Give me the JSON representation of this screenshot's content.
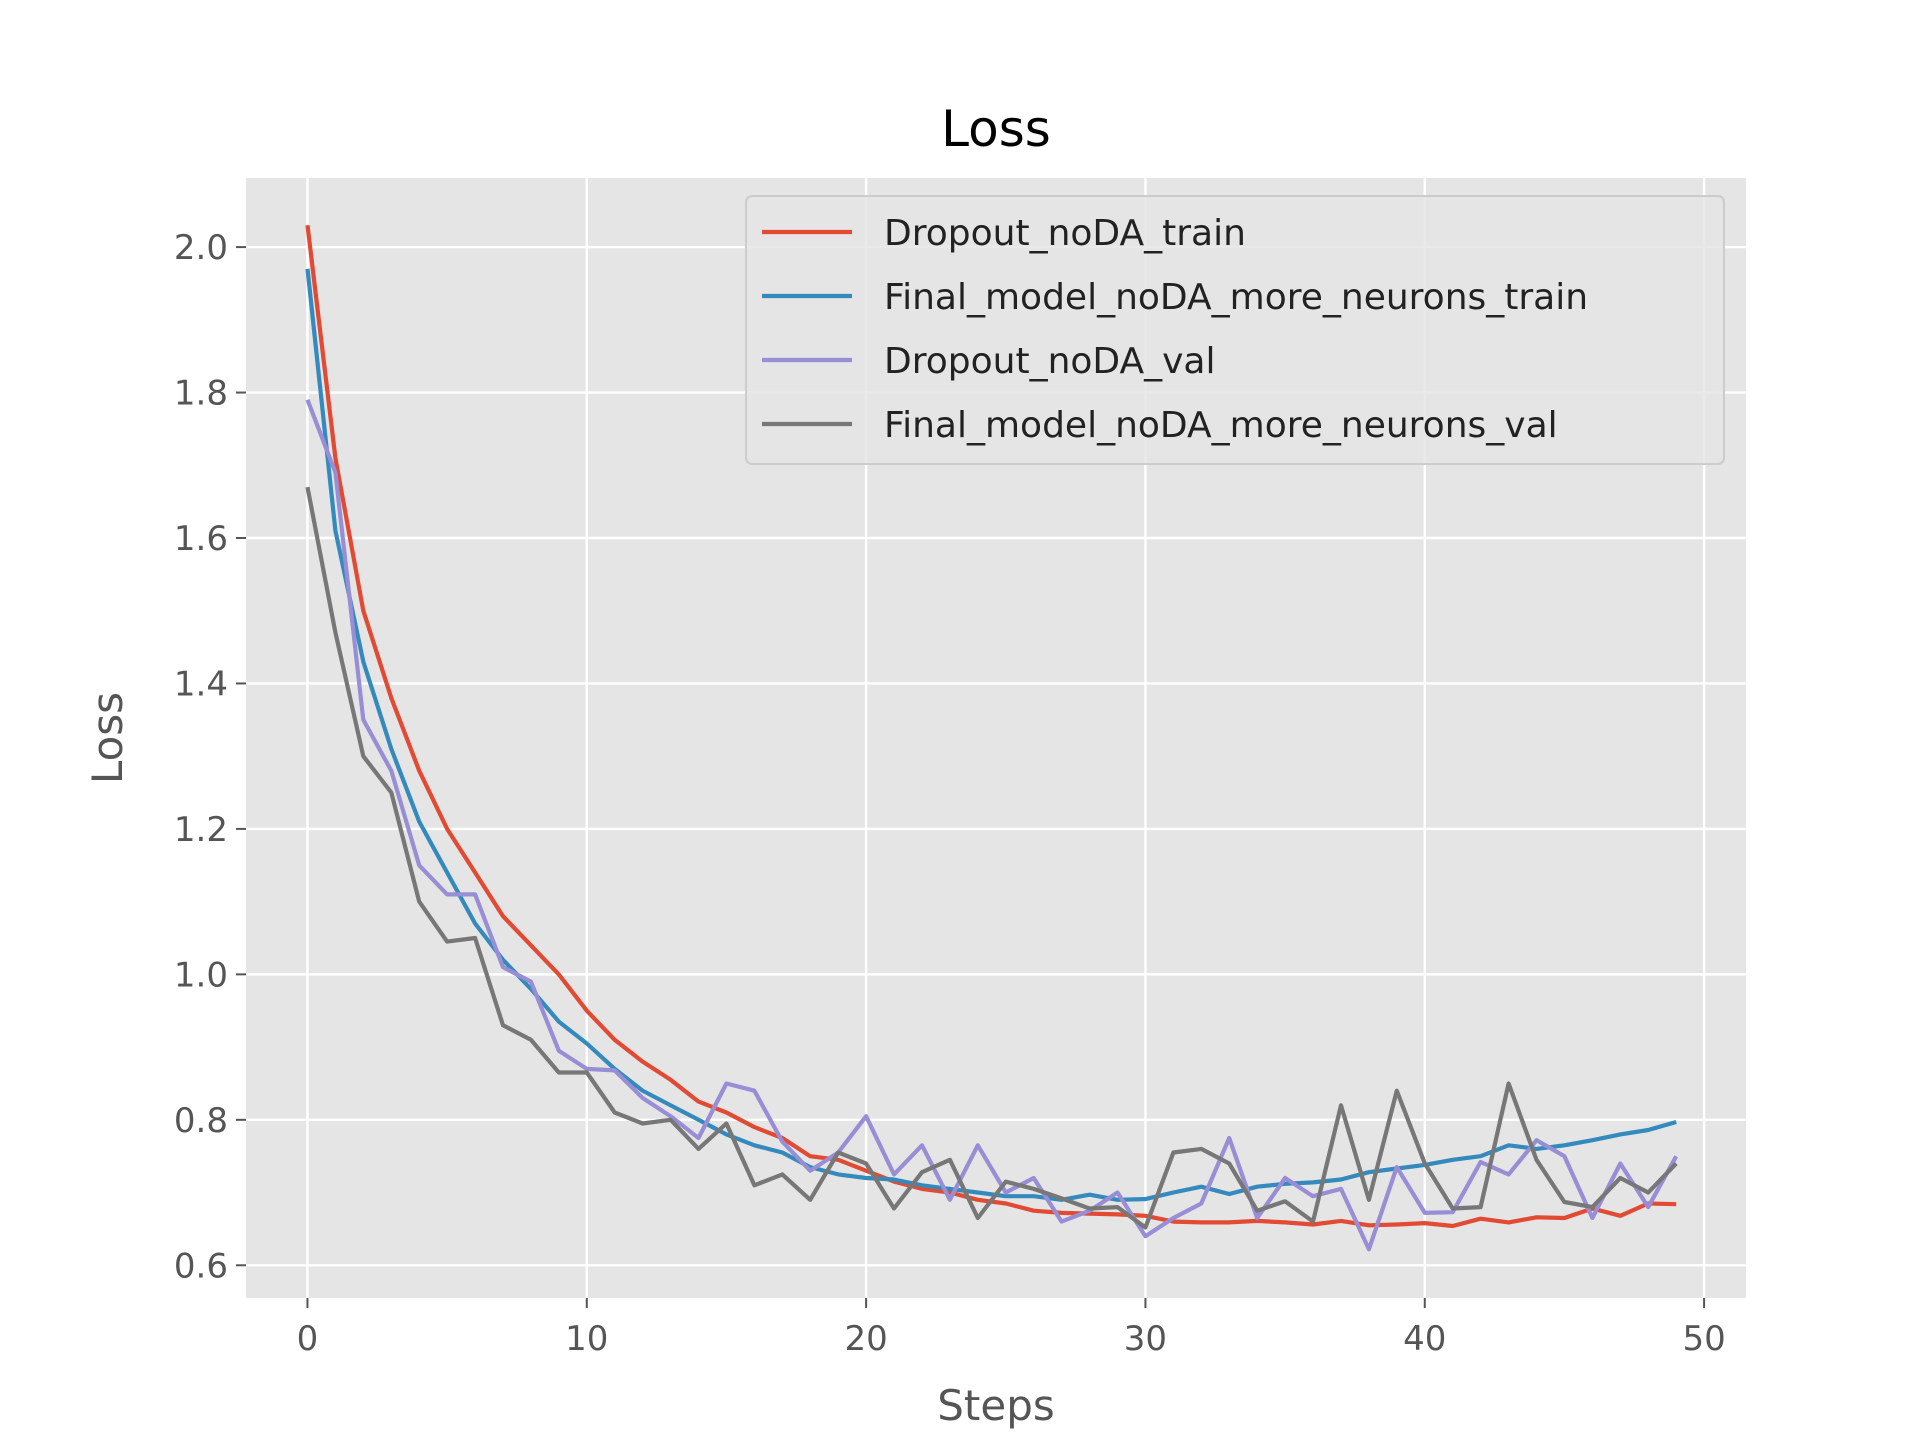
{
  "chart_data": {
    "type": "line",
    "title": "Loss",
    "xlabel": "Steps",
    "ylabel": "Loss",
    "xlim": [
      -2.2,
      51.5
    ],
    "ylim": [
      0.555,
      2.095
    ],
    "xticks": [
      0,
      10,
      20,
      30,
      40,
      50
    ],
    "xtick_labels": [
      "0",
      "10",
      "20",
      "30",
      "40",
      "50"
    ],
    "yticks": [
      0.6,
      0.8,
      1.0,
      1.2,
      1.4,
      1.6,
      1.8,
      2.0
    ],
    "ytick_labels": [
      "0.6",
      "0.8",
      "1.0",
      "1.2",
      "1.4",
      "1.6",
      "1.8",
      "2.0"
    ],
    "grid": true,
    "legend_position": "top-right",
    "style": {
      "background": "#e5e5e5",
      "grid_color": "#ffffff"
    },
    "x": [
      0,
      1,
      2,
      3,
      4,
      5,
      6,
      7,
      8,
      9,
      10,
      11,
      12,
      13,
      14,
      15,
      16,
      17,
      18,
      19,
      20,
      21,
      22,
      23,
      24,
      25,
      26,
      27,
      28,
      29,
      30,
      31,
      32,
      33,
      34,
      35,
      36,
      37,
      38,
      39,
      40,
      41,
      42,
      43,
      44,
      45,
      46,
      47,
      48,
      49
    ],
    "series": [
      {
        "name": "Dropout_noDA_train",
        "color": "#e24a33",
        "values": [
          2.03,
          1.71,
          1.5,
          1.38,
          1.28,
          1.2,
          1.14,
          1.08,
          1.04,
          1.0,
          0.95,
          0.91,
          0.88,
          0.855,
          0.825,
          0.81,
          0.79,
          0.775,
          0.75,
          0.745,
          0.73,
          0.715,
          0.705,
          0.7,
          0.69,
          0.685,
          0.675,
          0.672,
          0.671,
          0.67,
          0.668,
          0.66,
          0.659,
          0.659,
          0.661,
          0.659,
          0.656,
          0.661,
          0.655,
          0.656,
          0.658,
          0.654,
          0.664,
          0.659,
          0.666,
          0.665,
          0.678,
          0.668,
          0.685,
          0.684
        ]
      },
      {
        "name": "Final_model_noDA_more_neurons_train",
        "color": "#348abd",
        "values": [
          1.97,
          1.61,
          1.43,
          1.31,
          1.21,
          1.14,
          1.07,
          1.02,
          0.98,
          0.935,
          0.905,
          0.87,
          0.84,
          0.82,
          0.8,
          0.78,
          0.765,
          0.755,
          0.735,
          0.725,
          0.72,
          0.718,
          0.71,
          0.705,
          0.7,
          0.695,
          0.695,
          0.69,
          0.697,
          0.69,
          0.691,
          0.7,
          0.708,
          0.698,
          0.708,
          0.712,
          0.714,
          0.718,
          0.728,
          0.733,
          0.738,
          0.745,
          0.75,
          0.765,
          0.76,
          0.765,
          0.772,
          0.78,
          0.786,
          0.797
        ]
      },
      {
        "name": "Dropout_noDA_val",
        "color": "#988ed5",
        "values": [
          1.79,
          1.69,
          1.35,
          1.28,
          1.15,
          1.11,
          1.11,
          1.01,
          0.99,
          0.895,
          0.87,
          0.868,
          0.83,
          0.805,
          0.775,
          0.85,
          0.84,
          0.77,
          0.73,
          0.755,
          0.805,
          0.725,
          0.765,
          0.69,
          0.765,
          0.7,
          0.72,
          0.66,
          0.675,
          0.7,
          0.64,
          0.665,
          0.685,
          0.775,
          0.665,
          0.72,
          0.695,
          0.705,
          0.622,
          0.735,
          0.672,
          0.673,
          0.742,
          0.725,
          0.772,
          0.75,
          0.665,
          0.74,
          0.68,
          0.75
        ]
      },
      {
        "name": "Final_model_noDA_more_neurons_val",
        "color": "#777777",
        "values": [
          1.67,
          1.47,
          1.3,
          1.25,
          1.1,
          1.045,
          1.05,
          0.93,
          0.91,
          0.865,
          0.865,
          0.81,
          0.795,
          0.8,
          0.76,
          0.795,
          0.71,
          0.725,
          0.69,
          0.755,
          0.74,
          0.678,
          0.728,
          0.745,
          0.665,
          0.715,
          0.705,
          0.692,
          0.678,
          0.68,
          0.652,
          0.755,
          0.76,
          0.74,
          0.675,
          0.688,
          0.66,
          0.82,
          0.69,
          0.84,
          0.74,
          0.678,
          0.68,
          0.85,
          0.745,
          0.687,
          0.68,
          0.72,
          0.7,
          0.74
        ]
      }
    ]
  }
}
